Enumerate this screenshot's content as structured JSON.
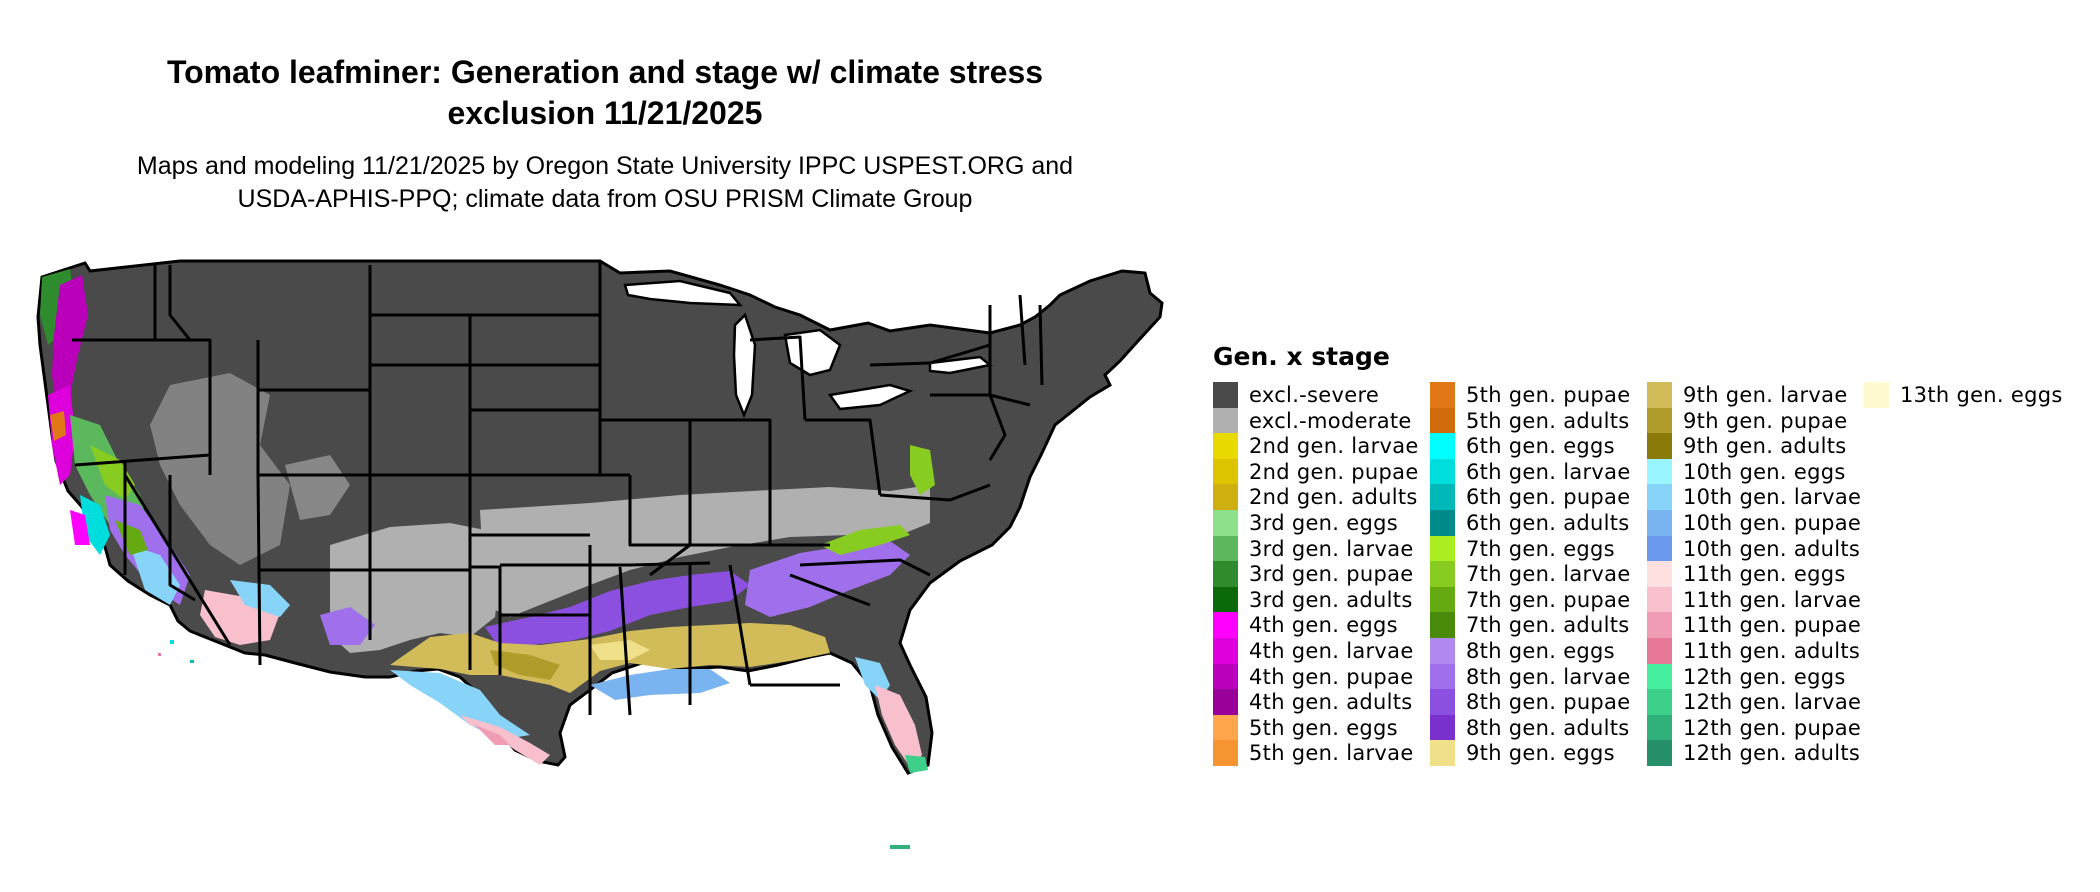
{
  "title_line1": "Tomato leafminer: Generation and stage w/ climate stress",
  "title_line2": "exclusion 11/21/2025",
  "subtitle_line1": "Maps and modeling 11/21/2025 by Oregon State University IPPC USPEST.ORG and",
  "subtitle_line2": "USDA-APHIS-PPQ; climate data from OSU PRISM Climate Group",
  "legend": {
    "title": "Gen. x stage",
    "items": [
      {
        "label": "excl.-severe",
        "color": "#4a4a4a"
      },
      {
        "label": "excl.-moderate",
        "color": "#b0b0b0"
      },
      {
        "label": "2nd gen. larvae",
        "color": "#e8d900"
      },
      {
        "label": "2nd gen. pupae",
        "color": "#dcc400"
      },
      {
        "label": "2nd gen. adults",
        "color": "#cfae10"
      },
      {
        "label": "3rd gen. eggs",
        "color": "#8ee08a"
      },
      {
        "label": "3rd gen. larvae",
        "color": "#5cb85c"
      },
      {
        "label": "3rd gen. pupae",
        "color": "#2e8b2e"
      },
      {
        "label": "3rd gen. adults",
        "color": "#0a6a0a"
      },
      {
        "label": "4th gen. eggs",
        "color": "#ff00ff"
      },
      {
        "label": "4th gen. larvae",
        "color": "#dd00dd"
      },
      {
        "label": "4th gen. pupae",
        "color": "#bb00bb"
      },
      {
        "label": "4th gen. adults",
        "color": "#990099"
      },
      {
        "label": "5th gen. eggs",
        "color": "#ffa64d"
      },
      {
        "label": "5th gen. larvae",
        "color": "#f59430"
      },
      {
        "label": "5th gen. pupae",
        "color": "#e07818"
      },
      {
        "label": "5th gen. adults",
        "color": "#d06a0a"
      },
      {
        "label": "6th gen. eggs",
        "color": "#00ffff"
      },
      {
        "label": "6th gen. larvae",
        "color": "#00dddd"
      },
      {
        "label": "6th gen. pupae",
        "color": "#00b8b8"
      },
      {
        "label": "6th gen. adults",
        "color": "#008b8b"
      },
      {
        "label": "7th gen. eggs",
        "color": "#aaee22"
      },
      {
        "label": "7th gen. larvae",
        "color": "#88cc22"
      },
      {
        "label": "7th gen. pupae",
        "color": "#66aa11"
      },
      {
        "label": "7th gen. adults",
        "color": "#4a8a0a"
      },
      {
        "label": "8th gen. eggs",
        "color": "#b088f0"
      },
      {
        "label": "8th gen. larvae",
        "color": "#a070ec"
      },
      {
        "label": "8th gen. pupae",
        "color": "#8c50e0"
      },
      {
        "label": "8th gen. adults",
        "color": "#7a30cc"
      },
      {
        "label": "9th gen. eggs",
        "color": "#f0e08a"
      },
      {
        "label": "9th gen. larvae",
        "color": "#d2bc5a"
      },
      {
        "label": "9th gen. pupae",
        "color": "#b09c2a"
      },
      {
        "label": "9th gen. adults",
        "color": "#8a7a0a"
      },
      {
        "label": "10th gen. eggs",
        "color": "#99f5ff"
      },
      {
        "label": "10th gen. larvae",
        "color": "#88d4f8"
      },
      {
        "label": "10th gen. pupae",
        "color": "#7ab4f0"
      },
      {
        "label": "10th gen. adults",
        "color": "#6a98ea"
      },
      {
        "label": "11th gen. eggs",
        "color": "#ffe0e0"
      },
      {
        "label": "11th gen. larvae",
        "color": "#f8c0cc"
      },
      {
        "label": "11th gen. pupae",
        "color": "#f09cb4"
      },
      {
        "label": "11th gen. adults",
        "color": "#e87898"
      },
      {
        "label": "12th gen. eggs",
        "color": "#44f0a0"
      },
      {
        "label": "12th gen. larvae",
        "color": "#3cd08a"
      },
      {
        "label": "12th gen. pupae",
        "color": "#30b07a"
      },
      {
        "label": "12th gen. adults",
        "color": "#26906a"
      },
      {
        "label": "13th gen. eggs",
        "color": "#fffad0"
      }
    ]
  },
  "map_colors": {
    "severe": "#4a4a4a",
    "moderate": "#b0b0b0",
    "border": "#000000"
  }
}
